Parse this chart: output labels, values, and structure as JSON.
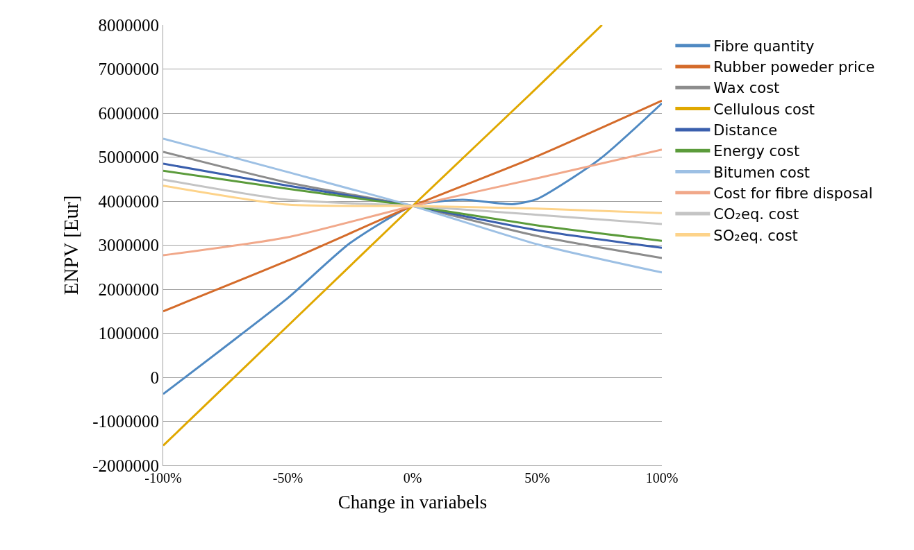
{
  "chart_data": {
    "type": "line",
    "xlabel": "Change in variabels",
    "ylabel": "ENPV [Eur]",
    "x": [
      -100,
      -50,
      0,
      50,
      100
    ],
    "series": [
      {
        "name": "Fibre quantity",
        "color": "#4f89c2",
        "x": [
          -100,
          -75,
          -50,
          -25,
          0,
          20,
          40,
          50,
          75,
          100
        ],
        "values": [
          -380000,
          700000,
          1800000,
          3050000,
          3890000,
          4030000,
          3930000,
          4050000,
          4950000,
          6220000
        ]
      },
      {
        "name": "Rubber poweder price",
        "color": "#d46b2a",
        "values": [
          1500000,
          2650000,
          3890000,
          5020000,
          6280000
        ]
      },
      {
        "name": "Wax cost",
        "color": "#8c8c8c",
        "values": [
          5120000,
          4420000,
          3890000,
          3210000,
          2710000
        ]
      },
      {
        "name": "Cellulous cost",
        "color": "#e0a800",
        "x": [
          -100,
          -50,
          0,
          50,
          76
        ],
        "values": [
          -1550000,
          1170000,
          3890000,
          6580000,
          8000000
        ]
      },
      {
        "name": "Distance",
        "color": "#3a5fad",
        "values": [
          4850000,
          4350000,
          3890000,
          3340000,
          2940000
        ]
      },
      {
        "name": "Energy cost",
        "color": "#5b9b3b",
        "values": [
          4690000,
          4280000,
          3890000,
          3450000,
          3100000
        ]
      },
      {
        "name": "Bitumen cost",
        "color": "#9dc0e4",
        "values": [
          5420000,
          4660000,
          3890000,
          3020000,
          2380000
        ]
      },
      {
        "name": "Cost for fibre disposal",
        "color": "#f1a88a",
        "values": [
          2770000,
          3180000,
          3890000,
          4520000,
          5170000
        ]
      },
      {
        "name": "CO₂eq. cost",
        "color": "#c4c4c4",
        "values": [
          4490000,
          4030000,
          3890000,
          3690000,
          3480000
        ]
      },
      {
        "name": "SO₂eq. cost",
        "color": "#fdd38a",
        "values": [
          4350000,
          3920000,
          3890000,
          3830000,
          3730000
        ]
      }
    ],
    "xlim": [
      -100,
      100
    ],
    "xticks": [
      {
        "value": -100,
        "label": "-100%"
      },
      {
        "value": -50,
        "label": "-50%"
      },
      {
        "value": 0,
        "label": "0%"
      },
      {
        "value": 50,
        "label": "50%"
      },
      {
        "value": 100,
        "label": "100%"
      }
    ],
    "ylim": [
      -2000000,
      8000000
    ],
    "yticks": [
      -2000000,
      -1000000,
      0,
      1000000,
      2000000,
      3000000,
      4000000,
      5000000,
      6000000,
      7000000,
      8000000
    ],
    "grid": "y",
    "legend": "right",
    "marker": "none",
    "line_style": "solid"
  }
}
